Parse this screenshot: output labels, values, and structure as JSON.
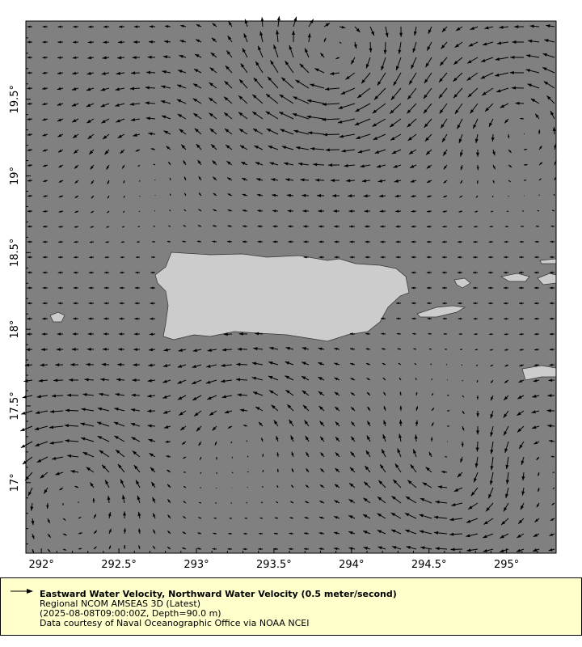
{
  "chart_data": {
    "type": "vector-map",
    "title": "Eastward Water Velocity, Northward Water Velocity (0.5 meter/second)",
    "xlim": [
      291.9,
      295.32
    ],
    "ylim": [
      16.54,
      20.01
    ],
    "x_ticks": [
      "292°",
      "292.5°",
      "293°",
      "293.5°",
      "294°",
      "294.5°",
      "295°"
    ],
    "x_tick_values": [
      292,
      292.5,
      293,
      293.5,
      294,
      294.5,
      295
    ],
    "y_ticks": [
      "17°",
      "17.5°",
      "18°",
      "18.5°",
      "19°",
      "19.5°"
    ],
    "y_tick_values": [
      17,
      17.5,
      18,
      18.5,
      19,
      19.5
    ],
    "reference_vector_ms": 0.5,
    "ocean_color": "#808080",
    "land_color": "#cccccc"
  },
  "legend": {
    "title": "Eastward Water Velocity, Northward Water Velocity (0.5 meter/second)",
    "line1": "Regional NCOM AMSEAS 3D (Latest)",
    "line2": "(2025-08-08T09:00:00Z, Depth=90.0 m)",
    "line3": "Data courtesy of Naval Oceanographic Office via NOAA NCEI"
  }
}
